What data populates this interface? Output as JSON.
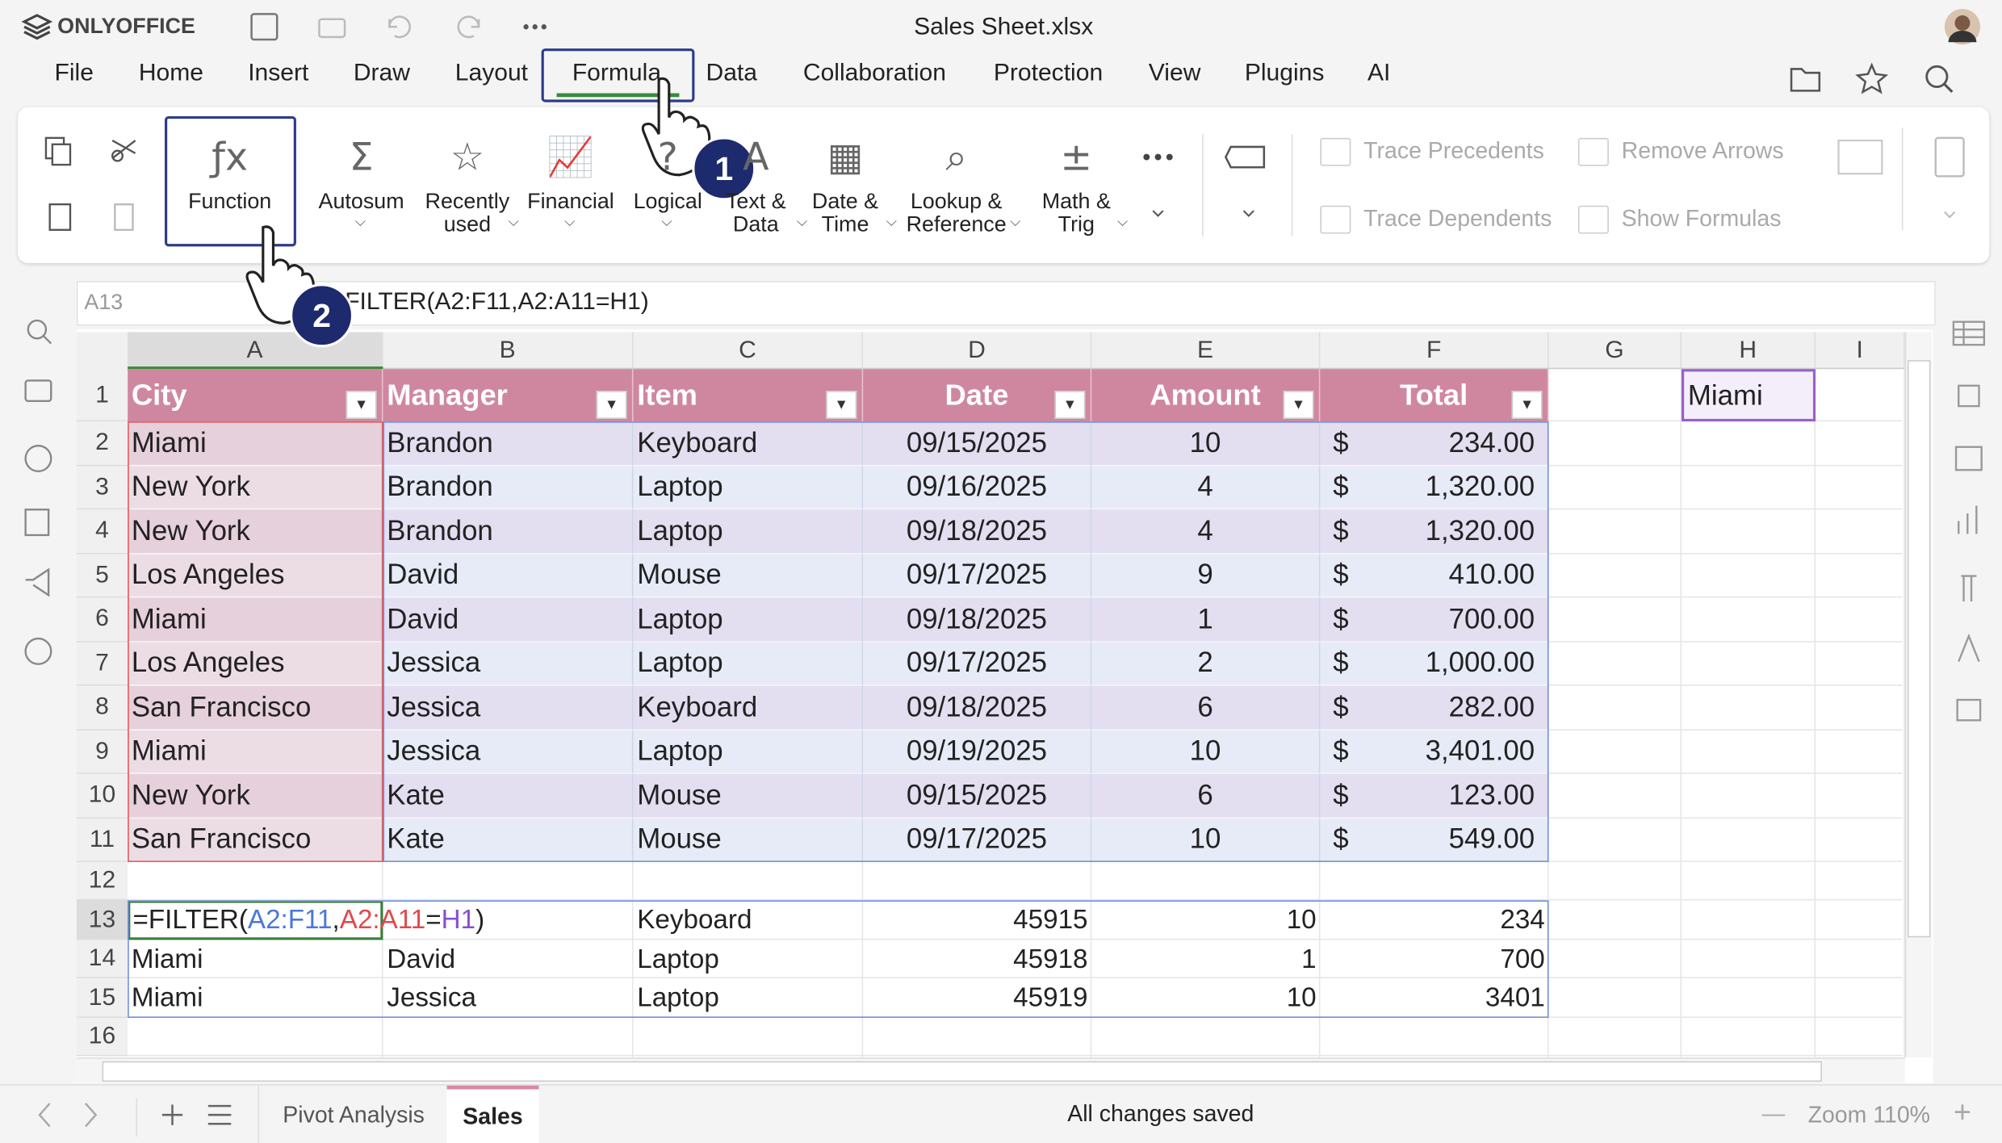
{
  "app": {
    "brand": "ONLYOFFICE",
    "file_name": "Sales Sheet.xlsx"
  },
  "menu": [
    "File",
    "Home",
    "Insert",
    "Draw",
    "Layout",
    "Formula",
    "Data",
    "Collaboration",
    "Protection",
    "View",
    "Plugins",
    "AI"
  ],
  "ribbon": {
    "buttons": [
      [
        "Function"
      ],
      [
        "Autosum"
      ],
      [
        "Recently",
        "used"
      ],
      [
        "Financial"
      ],
      [
        "Logical"
      ],
      [
        "Text &",
        "Data"
      ],
      [
        "Date &",
        "Time"
      ],
      [
        "Lookup &",
        "Reference"
      ],
      [
        "Math &",
        "Trig"
      ]
    ],
    "audit": [
      "Trace Precedents",
      "Remove Arrows",
      "Trace Dependents",
      "Show Formulas"
    ]
  },
  "formula_bar": {
    "cell": "A13",
    "formula": "=FILTER(A2:F11,A2:A11=H1)"
  },
  "columns": [
    "A",
    "B",
    "C",
    "D",
    "E",
    "F",
    "G",
    "H",
    "I"
  ],
  "row_numbers": [
    "1",
    "2",
    "3",
    "4",
    "5",
    "6",
    "7",
    "8",
    "9",
    "10",
    "11",
    "12",
    "13",
    "14",
    "15",
    "16"
  ],
  "table": {
    "header": [
      "City",
      "Manager",
      "Item",
      "Date",
      "Amount",
      "Total"
    ],
    "currency": "$",
    "rows": [
      [
        "Miami",
        "Brandon",
        "Keyboard",
        "09/15/2025",
        "10",
        "234.00"
      ],
      [
        "New York",
        "Brandon",
        "Laptop",
        "09/16/2025",
        "4",
        "1,320.00"
      ],
      [
        "New York",
        "Brandon",
        "Laptop",
        "09/18/2025",
        "4",
        "1,320.00"
      ],
      [
        "Los Angeles",
        "David",
        "Mouse",
        "09/17/2025",
        "9",
        "410.00"
      ],
      [
        "Miami",
        "David",
        "Laptop",
        "09/18/2025",
        "1",
        "700.00"
      ],
      [
        "Los Angeles",
        "Jessica",
        "Laptop",
        "09/17/2025",
        "2",
        "1,000.00"
      ],
      [
        "San Francisco",
        "Jessica",
        "Keyboard",
        "09/18/2025",
        "6",
        "282.00"
      ],
      [
        "Miami",
        "Jessica",
        "Laptop",
        "09/19/2025",
        "10",
        "3,401.00"
      ],
      [
        "New York",
        "Kate",
        "Mouse",
        "09/15/2025",
        "6",
        "123.00"
      ],
      [
        "San Francisco",
        "Kate",
        "Mouse",
        "09/17/2025",
        "10",
        "549.00"
      ]
    ]
  },
  "lookup_cell": "Miami",
  "formula_cell": [
    "=FILTER(",
    "A2:F11",
    ",",
    "A2:A11",
    "=",
    "H1",
    ")"
  ],
  "results": [
    [
      "Keyboard",
      "45915",
      "10",
      "234"
    ],
    [
      "Miami",
      "David",
      "Laptop",
      "45918",
      "1",
      "700"
    ],
    [
      "Miami",
      "Jessica",
      "Laptop",
      "45919",
      "10",
      "3401"
    ]
  ],
  "callouts": [
    "1",
    "2"
  ],
  "sheets": [
    "Pivot Analysis",
    "Sales"
  ],
  "status": "All changes saved",
  "zoom": "Zoom 110%"
}
